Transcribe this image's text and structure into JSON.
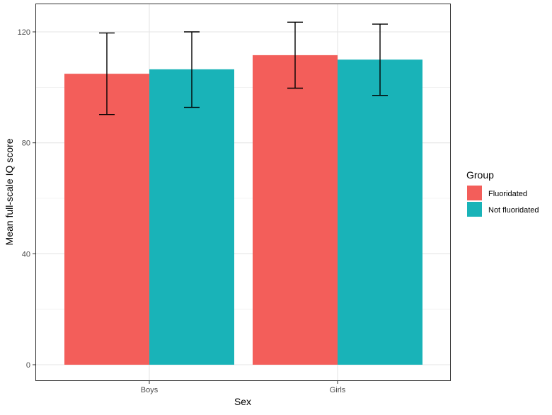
{
  "chart_data": {
    "type": "bar",
    "title": "",
    "xlabel": "Sex",
    "ylabel": "Mean full-scale IQ score",
    "categories": [
      "Boys",
      "Girls"
    ],
    "series": [
      {
        "name": "Fluoridated",
        "color": "#F35E5A",
        "values": [
          104.9,
          111.6
        ],
        "error_low": [
          90.2,
          99.7
        ],
        "error_high": [
          119.6,
          123.5
        ]
      },
      {
        "name": "Not fluoridated",
        "color": "#19B3B8",
        "values": [
          106.5,
          110.0
        ],
        "error_low": [
          92.8,
          97.1
        ],
        "error_high": [
          120.0,
          122.8
        ]
      }
    ],
    "ylim": [
      -7.3,
      128.6
    ],
    "yticks": [
      0,
      40,
      80,
      120
    ],
    "ytick_labels": [
      "0",
      "40",
      "80",
      "120"
    ],
    "grid": true,
    "legend": {
      "title": "Group",
      "placement": "right"
    }
  }
}
